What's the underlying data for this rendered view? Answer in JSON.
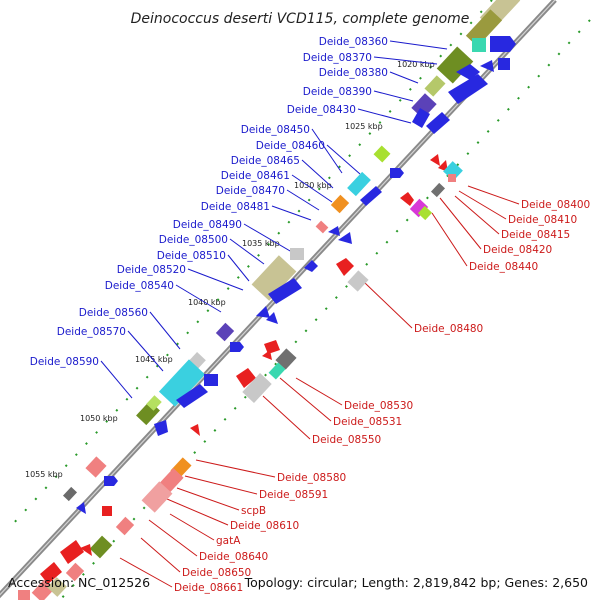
{
  "title": "Deinococcus deserti VCD115, complete genome",
  "footer": {
    "accession": "Accession: NC_012526",
    "summary": "Topology: circular; Length: 2,819,842 bp; Genes: 2,650"
  },
  "colors": {
    "forward_label": "#1a1acc",
    "reverse_label": "#cc1a1a",
    "backbone": "#8a8a8a",
    "tick": "#2a9a2a"
  },
  "forward_labels": [
    "Deide_08360",
    "Deide_08370",
    "Deide_08380",
    "Deide_08390",
    "Deide_08430",
    "Deide_08450",
    "Deide_08460",
    "Deide_08465",
    "Deide_08461",
    "Deide_08470",
    "Deide_08481",
    "Deide_08490",
    "Deide_08500",
    "Deide_08510",
    "Deide_08520",
    "Deide_08540",
    "Deide_08560",
    "Deide_08570",
    "Deide_08590"
  ],
  "reverse_labels": [
    "Deide_08400",
    "Deide_08410",
    "Deide_08415",
    "Deide_08420",
    "Deide_08440",
    "Deide_08480",
    "Deide_08530",
    "Deide_08531",
    "Deide_08550",
    "Deide_08580",
    "Deide_08591",
    "scpB",
    "Deide_08610",
    "gatA",
    "Deide_08640",
    "Deide_08650",
    "Deide_08661"
  ],
  "kbp_labels": [
    "1020 kbp",
    "1025 kbp",
    "1030 kbp",
    "1035 kbp",
    "1040 kbp",
    "1045 kbp",
    "1050 kbp",
    "1055 kbp"
  ]
}
